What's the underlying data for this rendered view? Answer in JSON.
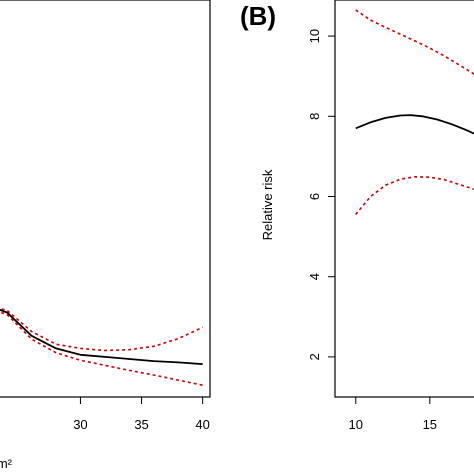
{
  "chart_data": [
    {
      "type": "line",
      "panel_label": "",
      "xlabel": "...m²",
      "ylabel": "",
      "x_ticks": [
        30,
        35,
        40
      ],
      "xlim": [
        22.6,
        40.6
      ],
      "ylim": [
        1.5,
        10.9
      ],
      "y_ticks": [],
      "grid": false,
      "series": [
        {
          "role": "estimate",
          "color": "#000000",
          "style": "solid",
          "x": [
            22.6,
            24,
            26,
            28,
            30,
            32,
            34,
            36,
            38,
            40
          ],
          "y": [
            3.65,
            3.5,
            2.95,
            2.65,
            2.5,
            2.45,
            2.4,
            2.35,
            2.32,
            2.28
          ]
        },
        {
          "role": "upper-ci",
          "color": "#cc0000",
          "style": "dotted",
          "x": [
            22.6,
            24,
            26,
            28,
            30,
            32,
            34,
            36,
            38,
            40
          ],
          "y": [
            3.65,
            3.55,
            3.05,
            2.75,
            2.65,
            2.6,
            2.62,
            2.7,
            2.88,
            3.15
          ]
        },
        {
          "role": "lower-ci",
          "color": "#cc0000",
          "style": "dotted",
          "x": [
            22.6,
            24,
            26,
            28,
            30,
            32,
            34,
            36,
            38,
            40
          ],
          "y": [
            3.6,
            3.45,
            2.87,
            2.55,
            2.37,
            2.25,
            2.13,
            2.02,
            1.9,
            1.78
          ]
        }
      ]
    },
    {
      "type": "line",
      "panel_label": "(B)",
      "xlabel": "",
      "ylabel": "Relative risk",
      "x_ticks": [
        10,
        15
      ],
      "xlim": [
        8.6,
        19.4
      ],
      "ylim": [
        1.0,
        10.9
      ],
      "y_ticks": [
        2,
        4,
        6,
        8,
        10
      ],
      "grid": false,
      "series": [
        {
          "role": "estimate",
          "color": "#000000",
          "style": "solid",
          "x": [
            10,
            11,
            12,
            13,
            13.7,
            14.5,
            15.5,
            16.5,
            17.5,
            18.5,
            19.4
          ],
          "y": [
            7.7,
            7.85,
            7.96,
            8.02,
            8.03,
            8.0,
            7.92,
            7.8,
            7.65,
            7.48,
            7.33
          ]
        },
        {
          "role": "upper-ci",
          "color": "#cc0000",
          "style": "dotted",
          "x": [
            10,
            11,
            12,
            13,
            14,
            15,
            16,
            17,
            18,
            19,
            19.4
          ],
          "y": [
            10.65,
            10.4,
            10.22,
            10.05,
            9.88,
            9.7,
            9.5,
            9.28,
            9.05,
            8.82,
            8.75
          ]
        },
        {
          "role": "lower-ci",
          "color": "#cc0000",
          "style": "dotted",
          "x": [
            10,
            11,
            12,
            13,
            14,
            15,
            16,
            17,
            18,
            19,
            19.4
          ],
          "y": [
            5.55,
            6.0,
            6.28,
            6.43,
            6.49,
            6.48,
            6.42,
            6.3,
            6.18,
            6.05,
            6.0
          ]
        }
      ]
    }
  ]
}
